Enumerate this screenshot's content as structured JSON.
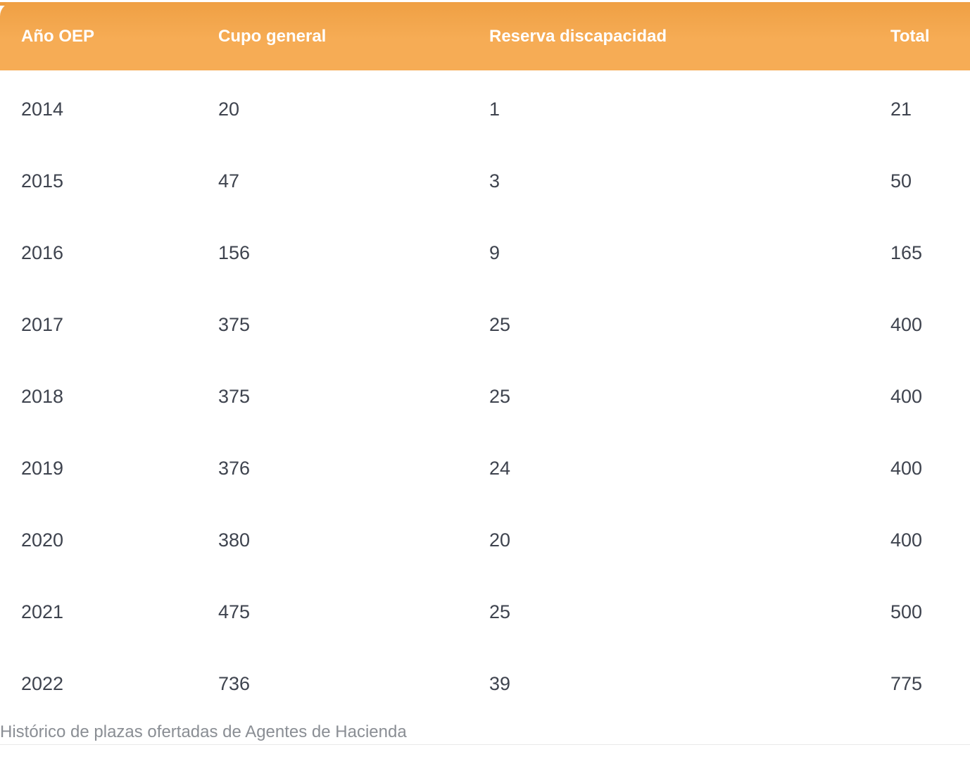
{
  "table": {
    "columns": [
      "Año OEP",
      "Cupo general",
      "Reserva discapacidad",
      "Total"
    ],
    "rows": [
      {
        "year": "2014",
        "cupo": "20",
        "reserva": "1",
        "total": "21"
      },
      {
        "year": "2015",
        "cupo": "47",
        "reserva": "3",
        "total": "50"
      },
      {
        "year": "2016",
        "cupo": "156",
        "reserva": "9",
        "total": "165"
      },
      {
        "year": "2017",
        "cupo": "375",
        "reserva": "25",
        "total": "400"
      },
      {
        "year": "2018",
        "cupo": "375",
        "reserva": "25",
        "total": "400"
      },
      {
        "year": "2019",
        "cupo": "376",
        "reserva": "24",
        "total": "400"
      },
      {
        "year": "2020",
        "cupo": "380",
        "reserva": "20",
        "total": "400"
      },
      {
        "year": "2021",
        "cupo": "475",
        "reserva": "25",
        "total": "500"
      },
      {
        "year": "2022",
        "cupo": "736",
        "reserva": "39",
        "total": "775"
      }
    ]
  },
  "caption": {
    "text": "Histórico de plazas ofertadas de Agentes de Hacienda"
  },
  "colors": {
    "strip": "#EE9C3E",
    "header-top": "#EFA044",
    "header-bg": "#F6AC55",
    "header-text": "#FFFFFF",
    "cell-text": "#3E434E",
    "caption-text": "#8A8E94",
    "divider": "#EAEAEA",
    "page-bg": "#FFFFFF"
  },
  "chart_data": {
    "type": "table",
    "title": "Histórico de plazas ofertadas de Agentes de Hacienda",
    "columns": [
      "Año OEP",
      "Cupo general",
      "Reserva discapacidad",
      "Total"
    ],
    "rows": [
      [
        "2014",
        20,
        1,
        21
      ],
      [
        "2015",
        47,
        3,
        50
      ],
      [
        "2016",
        156,
        9,
        165
      ],
      [
        "2017",
        375,
        25,
        400
      ],
      [
        "2018",
        375,
        25,
        400
      ],
      [
        "2019",
        376,
        24,
        400
      ],
      [
        "2020",
        380,
        20,
        400
      ],
      [
        "2021",
        475,
        25,
        500
      ],
      [
        "2022",
        736,
        39,
        775
      ]
    ],
    "legend_position": "none",
    "grid": false
  }
}
